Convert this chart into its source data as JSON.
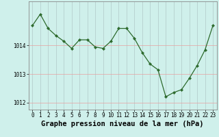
{
  "hours": [
    0,
    1,
    2,
    3,
    4,
    5,
    6,
    7,
    8,
    9,
    10,
    11,
    12,
    13,
    14,
    15,
    16,
    17,
    18,
    19,
    20,
    21,
    22,
    23
  ],
  "pressure": [
    1014.7,
    1015.1,
    1014.6,
    1014.35,
    1014.15,
    1013.9,
    1014.2,
    1014.2,
    1013.95,
    1013.9,
    1014.15,
    1014.6,
    1014.6,
    1014.25,
    1013.75,
    1013.35,
    1013.15,
    1012.2,
    1012.35,
    1012.45,
    1012.85,
    1013.3,
    1013.85,
    1014.7
  ],
  "line_color": "#2d6a2d",
  "marker": "D",
  "marker_size": 2.2,
  "bg_color": "#cff0eb",
  "grid_color_v": "#b0c8c8",
  "grid_color_h": "#e8a0a0",
  "xlabel": "Graphe pression niveau de la mer (hPa)",
  "xlabel_fontsize": 7.5,
  "ylim": [
    1011.75,
    1015.55
  ],
  "yticks": [
    1012,
    1013,
    1014
  ],
  "xticks": [
    0,
    1,
    2,
    3,
    4,
    5,
    6,
    7,
    8,
    9,
    10,
    11,
    12,
    13,
    14,
    15,
    16,
    17,
    18,
    19,
    20,
    21,
    22,
    23
  ],
  "tick_fontsize": 5.5,
  "border_color": "#888888"
}
